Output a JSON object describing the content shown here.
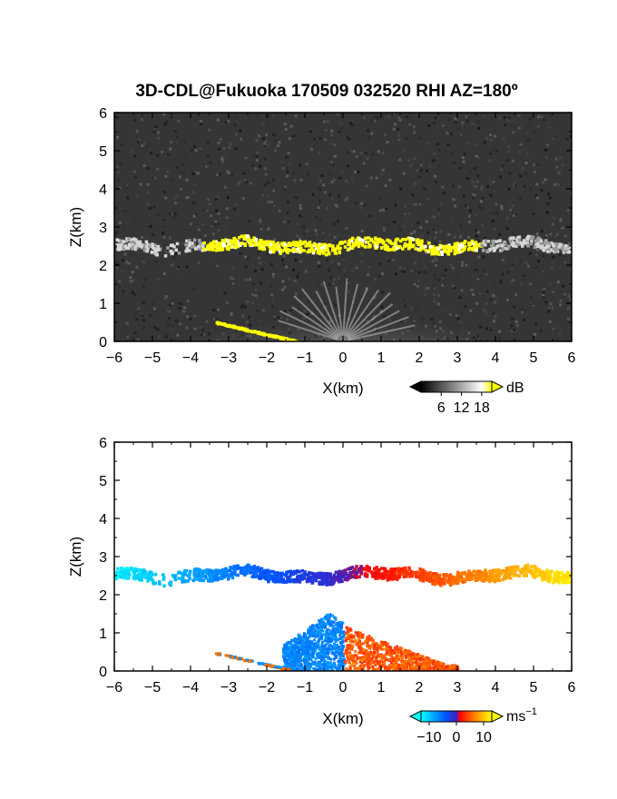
{
  "figure_title": "3D-CDL@Fukuoka 170509 032520 RHI AZ=180º",
  "chart_data": [
    {
      "type": "heatmap",
      "panel": "reflectivity",
      "xlabel": "X(km)",
      "ylabel": "Z(km)",
      "xlim": [
        -6,
        6
      ],
      "ylim": [
        0,
        6
      ],
      "xticks": [
        "−6",
        "−5",
        "−4",
        "−3",
        "−2",
        "−1",
        "0",
        "1",
        "2",
        "3",
        "4",
        "5",
        "6"
      ],
      "yticks": [
        "0",
        "1",
        "2",
        "3",
        "4",
        "5",
        "6"
      ],
      "colorbar": {
        "unit": "dB",
        "ticks": [
          "6",
          "12",
          "18"
        ],
        "min": 0,
        "max": 21,
        "colors": [
          "#000000",
          "#ffffff",
          "#ffff00"
        ]
      },
      "layers": [
        {
          "name": "background-noise",
          "value": 3
        },
        {
          "name": "cloud-layer-top",
          "x_range": [
            -6,
            6
          ],
          "z_center": 2.55,
          "value": 20,
          "color": "#ffff00"
        },
        {
          "name": "boundary-layer-fan",
          "x_range": [
            -2.5,
            2.5
          ],
          "z_range": [
            0,
            1.6
          ],
          "value": 10
        },
        {
          "name": "low-level-streak",
          "x_range": [
            -3.4,
            -1.0
          ],
          "z_range": [
            0.5,
            0.0
          ],
          "value": 20,
          "color": "#ffff00"
        }
      ]
    },
    {
      "type": "heatmap",
      "panel": "doppler-velocity",
      "xlabel": "X(km)",
      "ylabel": "Z(km)",
      "xlim": [
        -6,
        6
      ],
      "ylim": [
        0,
        6
      ],
      "xticks": [
        "−6",
        "−5",
        "−4",
        "−3",
        "−2",
        "−1",
        "0",
        "1",
        "2",
        "3",
        "4",
        "5",
        "6"
      ],
      "yticks": [
        "0",
        "1",
        "2",
        "3",
        "4",
        "5",
        "6"
      ],
      "colorbar": {
        "unit": "ms",
        "unit_exp": "−1",
        "ticks": [
          "−10",
          "0",
          "10"
        ],
        "min": -13,
        "max": 13,
        "colors": [
          "#00ffff",
          "#0044ff",
          "#ff0000",
          "#ffff00"
        ]
      },
      "layers": [
        {
          "name": "cloud-layer-velocity",
          "x_range": [
            -6,
            6
          ],
          "z_center": 2.55,
          "velocity_at_left": -12,
          "velocity_at_right": 12
        },
        {
          "name": "boundary-layer-velocity",
          "x_range": [
            -2.5,
            3.2
          ],
          "z_range": [
            0,
            1.6
          ],
          "velocity_left": -6,
          "velocity_right": 6
        },
        {
          "name": "low-level-streak-velocity",
          "x_range": [
            -3.4,
            -1.5
          ],
          "velocity": 0
        }
      ]
    }
  ]
}
